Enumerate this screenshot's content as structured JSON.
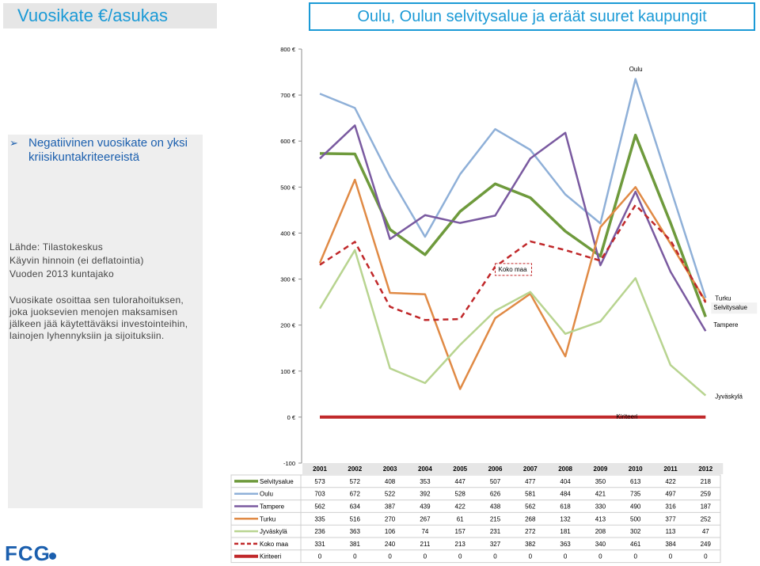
{
  "header": {
    "left_title": "Vuosikate €/asukas",
    "right_title": "Oulu, Oulun selvitysalue ja eräät suuret kaupungit"
  },
  "sidebar": {
    "bullet": "Negatiivinen vuosikate on yksi kriisikuntakriteereistä",
    "source_lines": [
      "Lähde: Tilastokeskus",
      "Käyvin hinnoin (ei deflatointia)",
      "Vuoden 2013 kuntajako"
    ],
    "note": "Vuosikate osoittaa sen tulorahoituksen, joka juoksevien menojen maksamisen jälkeen jää käytettäväksi investointeihin, lainojen lyhennyksiin ja sijoituksiin."
  },
  "logo": {
    "text": "FCG"
  },
  "colors": {
    "accent": "#1b9ad6",
    "logo": "#1b5fae"
  },
  "chart_data": {
    "type": "line",
    "categories": [
      "2001",
      "2002",
      "2003",
      "2004",
      "2005",
      "2006",
      "2007",
      "2008",
      "2009",
      "2010",
      "2011",
      "2012"
    ],
    "ylim": [
      -100,
      800
    ],
    "yticks": [
      -100,
      0,
      100,
      200,
      300,
      400,
      500,
      600,
      700,
      800
    ],
    "ytick_labels": [
      "-100",
      "0 €",
      "100 €",
      "200 €",
      "300 €",
      "400 €",
      "500 €",
      "600 €",
      "700 €",
      "800 €"
    ],
    "grid": false,
    "series": [
      {
        "name": "Selvitysalue",
        "color": "#6e9a3c",
        "dashed": false,
        "width": 3.5,
        "values": [
          573,
          572,
          408,
          353,
          447,
          507,
          477,
          404,
          350,
          613,
          422,
          218
        ]
      },
      {
        "name": "Oulu",
        "color": "#8fb0d8",
        "dashed": false,
        "width": 2.5,
        "values": [
          703,
          672,
          522,
          392,
          528,
          626,
          581,
          484,
          421,
          735,
          497,
          259
        ]
      },
      {
        "name": "Tampere",
        "color": "#7a5aa0",
        "dashed": false,
        "width": 2.5,
        "values": [
          562,
          634,
          387,
          439,
          422,
          438,
          562,
          618,
          330,
          490,
          316,
          187
        ]
      },
      {
        "name": "Turku",
        "color": "#e08a45",
        "dashed": false,
        "width": 2.5,
        "values": [
          335,
          516,
          270,
          267,
          61,
          215,
          268,
          132,
          413,
          500,
          377,
          252
        ]
      },
      {
        "name": "Jyväskylä",
        "color": "#b8d490",
        "dashed": false,
        "width": 2.5,
        "values": [
          236,
          363,
          106,
          74,
          157,
          231,
          272,
          181,
          208,
          302,
          113,
          47
        ]
      },
      {
        "name": "Koko maa",
        "color": "#c0282a",
        "dashed": true,
        "width": 2.5,
        "values": [
          331,
          381,
          240,
          211,
          213,
          327,
          382,
          363,
          340,
          461,
          384,
          249
        ]
      },
      {
        "name": "Kiriteeri",
        "color": "#c0282a",
        "dashed": false,
        "width": 4,
        "values": [
          0,
          0,
          0,
          0,
          0,
          0,
          0,
          0,
          0,
          0,
          0,
          0
        ]
      }
    ],
    "annotations": [
      {
        "series": "Oulu",
        "text": "Oulu"
      },
      {
        "series": "Turku",
        "text": "Turku"
      },
      {
        "series": "Selvitysalue",
        "text": "Selvitysalue"
      },
      {
        "series": "Tampere",
        "text": "Tampere"
      },
      {
        "series": "Jyväskylä",
        "text": "Jyväskylä"
      },
      {
        "series": "Koko maa",
        "text": "Koko maa"
      },
      {
        "series": "Kiriteeri",
        "text": "Kiriteeri"
      }
    ]
  }
}
